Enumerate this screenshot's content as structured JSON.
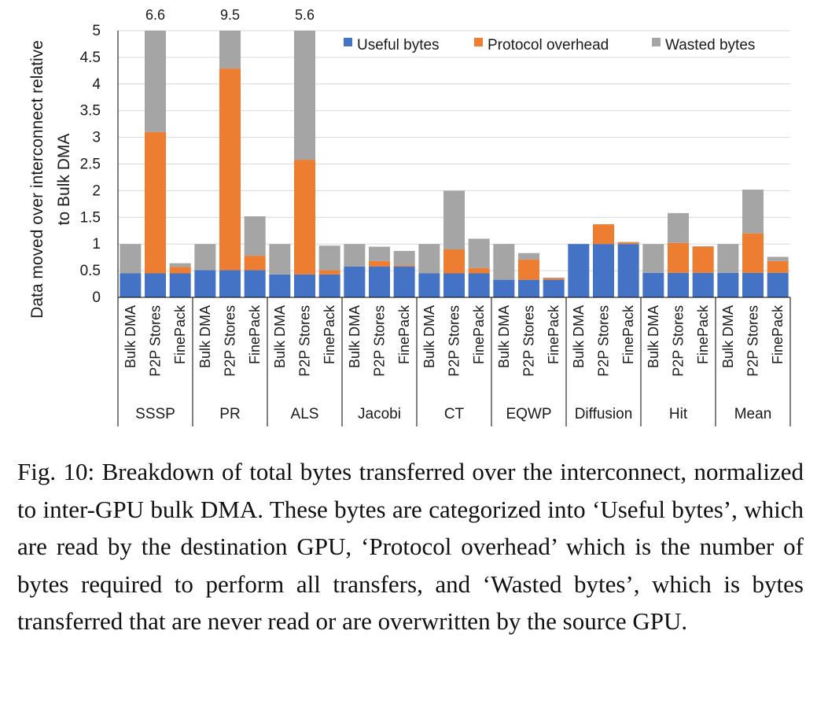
{
  "chart_data": {
    "type": "bar",
    "stacked": true,
    "ylabel_lines": [
      "Data moved over interconnect relative",
      "to Bulk DMA"
    ],
    "ylim": [
      0,
      5
    ],
    "yticks": [
      "0",
      "0.5",
      "1",
      "1.5",
      "2",
      "2.5",
      "3",
      "3.5",
      "4",
      "4.5",
      "5"
    ],
    "legend_position": "top-right",
    "legend": [
      {
        "name": "Useful bytes",
        "color": "#4472C4"
      },
      {
        "name": "Protocol overhead",
        "color": "#ED7D31"
      },
      {
        "name": "Wasted bytes",
        "color": "#A5A5A5"
      }
    ],
    "groups": [
      {
        "name": "SSSP",
        "bars": [
          {
            "label": "Bulk DMA",
            "useful": 0.45,
            "overhead": 0,
            "wasted": 0.55
          },
          {
            "label": "P2P Stores",
            "useful": 0.45,
            "overhead": 2.65,
            "wasted": 3.5,
            "total_label": "6.6"
          },
          {
            "label": "FinePack",
            "useful": 0.45,
            "overhead": 0.12,
            "wasted": 0.07
          }
        ]
      },
      {
        "name": "PR",
        "bars": [
          {
            "label": "Bulk DMA",
            "useful": 0.51,
            "overhead": 0,
            "wasted": 0.49
          },
          {
            "label": "P2P Stores",
            "useful": 0.51,
            "overhead": 3.78,
            "wasted": 5.21,
            "total_label": "9.5"
          },
          {
            "label": "FinePack",
            "useful": 0.51,
            "overhead": 0.27,
            "wasted": 0.74
          }
        ]
      },
      {
        "name": "ALS",
        "bars": [
          {
            "label": "Bulk DMA",
            "useful": 0.43,
            "overhead": 0,
            "wasted": 0.57
          },
          {
            "label": "P2P Stores",
            "useful": 0.43,
            "overhead": 2.15,
            "wasted": 3.02,
            "total_label": "5.6"
          },
          {
            "label": "FinePack",
            "useful": 0.43,
            "overhead": 0.08,
            "wasted": 0.46
          }
        ]
      },
      {
        "name": "Jacobi",
        "bars": [
          {
            "label": "Bulk DMA",
            "useful": 0.58,
            "overhead": 0,
            "wasted": 0.42
          },
          {
            "label": "P2P Stores",
            "useful": 0.58,
            "overhead": 0.1,
            "wasted": 0.27
          },
          {
            "label": "FinePack",
            "useful": 0.58,
            "overhead": 0.02,
            "wasted": 0.27
          }
        ]
      },
      {
        "name": "CT",
        "bars": [
          {
            "label": "Bulk DMA",
            "useful": 0.45,
            "overhead": 0,
            "wasted": 0.55
          },
          {
            "label": "P2P Stores",
            "useful": 0.45,
            "overhead": 0.45,
            "wasted": 1.1
          },
          {
            "label": "FinePack",
            "useful": 0.45,
            "overhead": 0.1,
            "wasted": 0.55
          }
        ]
      },
      {
        "name": "EQWP",
        "bars": [
          {
            "label": "Bulk DMA",
            "useful": 0.33,
            "overhead": 0,
            "wasted": 0.67
          },
          {
            "label": "P2P Stores",
            "useful": 0.33,
            "overhead": 0.38,
            "wasted": 0.12
          },
          {
            "label": "FinePack",
            "useful": 0.33,
            "overhead": 0.03,
            "wasted": 0.01
          }
        ]
      },
      {
        "name": "Diffusion",
        "bars": [
          {
            "label": "Bulk DMA",
            "useful": 1.0,
            "overhead": 0,
            "wasted": 0
          },
          {
            "label": "P2P Stores",
            "useful": 1.0,
            "overhead": 0.37,
            "wasted": 0
          },
          {
            "label": "FinePack",
            "useful": 1.0,
            "overhead": 0.03,
            "wasted": 0.01
          }
        ]
      },
      {
        "name": "Hit",
        "bars": [
          {
            "label": "Bulk DMA",
            "useful": 0.46,
            "overhead": 0,
            "wasted": 0.54
          },
          {
            "label": "P2P Stores",
            "useful": 0.46,
            "overhead": 0.56,
            "wasted": 0.56
          },
          {
            "label": "FinePack",
            "useful": 0.46,
            "overhead": 0.49,
            "wasted": 0.01
          }
        ]
      },
      {
        "name": "Mean",
        "bars": [
          {
            "label": "Bulk DMA",
            "useful": 0.46,
            "overhead": 0,
            "wasted": 0.54
          },
          {
            "label": "P2P Stores",
            "useful": 0.46,
            "overhead": 0.74,
            "wasted": 0.82
          },
          {
            "label": "FinePack",
            "useful": 0.46,
            "overhead": 0.22,
            "wasted": 0.08
          }
        ]
      }
    ]
  },
  "caption": "Fig. 10: Breakdown of total bytes transferred over the interconnect, normalized to inter-GPU bulk DMA. These bytes are categorized into ‘Useful bytes’, which are read by the destination GPU, ‘Protocol overhead’ which is the number of bytes required to perform all transfers, and ‘Wasted bytes’, which is bytes transferred that are never read or are overwritten by the source GPU."
}
